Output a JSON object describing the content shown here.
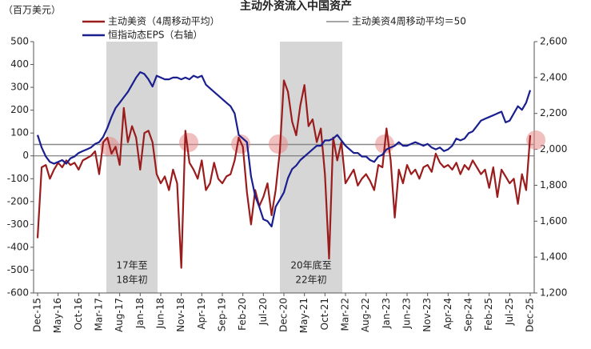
{
  "chart_data": {
    "type": "line",
    "title": "主动外资流入中国资产",
    "unit_label": "（百万美元）",
    "categories": [
      "Dec-15",
      null,
      null,
      null,
      null,
      "May-16",
      null,
      null,
      null,
      null,
      "Oct-16",
      null,
      null,
      null,
      null,
      "Mar-17",
      null,
      null,
      null,
      null,
      "Aug-17",
      null,
      null,
      null,
      null,
      "Jan-18",
      null,
      null,
      null,
      null,
      "Jun-18",
      null,
      null,
      null,
      null,
      "Nov-18",
      null,
      null,
      null,
      null,
      "Apr-19",
      null,
      null,
      null,
      null,
      "Sep-19",
      null,
      null,
      null,
      null,
      "Feb-20",
      null,
      null,
      null,
      null,
      "Jul-20",
      null,
      null,
      null,
      null,
      "Dec-20",
      null,
      null,
      null,
      null,
      "May-21",
      null,
      null,
      null,
      null,
      "Oct-21",
      null,
      null,
      null,
      null,
      "Mar-22",
      null,
      null,
      null,
      null,
      "Aug-22",
      null,
      null,
      null,
      null,
      "Jan-23",
      null,
      null,
      null,
      null,
      "Jun-23",
      null,
      null,
      null,
      null,
      "Nov-23",
      null,
      null,
      null,
      null,
      "Apr-24",
      null,
      null,
      null,
      null,
      "Sep-24",
      null,
      null,
      null,
      null,
      "Feb-25",
      null,
      null,
      null,
      null,
      "Jul-25",
      null,
      null,
      null,
      null,
      "Dec-25"
    ],
    "series": [
      {
        "name": "主动美资（4周移动平均）",
        "color": "#9b1c1c",
        "axis": "y",
        "values": [
          -360,
          -50,
          -40,
          -100,
          -60,
          -30,
          -50,
          -20,
          -40,
          -30,
          -60,
          -20,
          -10,
          0,
          20,
          -80,
          60,
          80,
          10,
          40,
          -40,
          210,
          60,
          130,
          80,
          -60,
          100,
          110,
          60,
          -80,
          -120,
          -90,
          -150,
          -60,
          -120,
          -490,
          110,
          -30,
          -60,
          -100,
          -20,
          -150,
          -120,
          -30,
          -100,
          -120,
          -90,
          -80,
          -20,
          80,
          40,
          -160,
          -300,
          -150,
          -220,
          -180,
          -120,
          -260,
          -150,
          20,
          330,
          280,
          150,
          90,
          220,
          310,
          130,
          160,
          60,
          120,
          -80,
          -450,
          80,
          -20,
          60,
          -120,
          -90,
          -60,
          -130,
          -100,
          -80,
          -110,
          -150,
          -40,
          -50,
          120,
          -20,
          -270,
          -60,
          -120,
          -40,
          -80,
          -60,
          -100,
          -50,
          -40,
          -70,
          10,
          -30,
          -50,
          -40,
          -60,
          -30,
          -80,
          -40,
          -60,
          -20,
          -50,
          -80,
          -60,
          -140,
          -50,
          -180,
          -60,
          -90,
          -120,
          -100,
          -210,
          -80,
          -150,
          90
        ]
      },
      {
        "name": "恒指动态EPS（右轴）",
        "color": "#1a1f8f",
        "axis": "y2",
        "values": [
          2080,
          2010,
          1960,
          1930,
          1920,
          1930,
          1940,
          1920,
          1950,
          1960,
          1980,
          1990,
          2000,
          2010,
          2030,
          2040,
          2070,
          2120,
          2180,
          2230,
          2260,
          2290,
          2320,
          2360,
          2400,
          2430,
          2420,
          2390,
          2350,
          2410,
          2400,
          2390,
          2390,
          2400,
          2400,
          2390,
          2400,
          2390,
          2410,
          2400,
          2410,
          2360,
          2340,
          2320,
          2300,
          2280,
          2260,
          2240,
          2200,
          2080,
          2060,
          2040,
          1850,
          1740,
          1680,
          1610,
          1600,
          1570,
          1680,
          1720,
          1760,
          1840,
          1890,
          1910,
          1940,
          1960,
          1980,
          2000,
          2020,
          2020,
          2050,
          2050,
          2060,
          2080,
          2050,
          2020,
          2000,
          1980,
          1980,
          1960,
          1960,
          1940,
          1930,
          1960,
          1970,
          2000,
          2010,
          2020,
          2040,
          2020,
          2020,
          2030,
          2040,
          2030,
          2020,
          2030,
          2010,
          2000,
          2010,
          1990,
          2000,
          2020,
          2060,
          2050,
          2060,
          2090,
          2100,
          2130,
          2160,
          2170,
          2180,
          2190,
          2200,
          2210,
          2150,
          2160,
          2200,
          2240,
          2220,
          2260,
          2330
        ]
      }
    ],
    "reference_line": {
      "name": "主动美资4周移动平均＝50",
      "value": 50,
      "color": "#888888"
    },
    "annotations": [
      [
        "17年至",
        "18年初"
      ],
      [
        "20年底至",
        "22年初"
      ]
    ],
    "ylim": [
      -600,
      500
    ],
    "yticks": [
      -600,
      -500,
      -400,
      -300,
      -200,
      -100,
      0,
      100,
      200,
      300,
      400,
      500
    ],
    "y2lim": [
      1200,
      2600
    ],
    "y2ticks": [
      {
        "value": 1200,
        "label": "1,200"
      },
      {
        "value": 1400,
        "label": "1,400"
      },
      {
        "value": 1600,
        "label": "1,600"
      },
      {
        "value": 1800,
        "label": "1,800"
      },
      {
        "value": 2000,
        "label": "2,000"
      },
      {
        "value": 2200,
        "label": "2,200"
      },
      {
        "value": 2400,
        "label": "2,400"
      },
      {
        "value": 2600,
        "label": "2,600"
      }
    ]
  }
}
